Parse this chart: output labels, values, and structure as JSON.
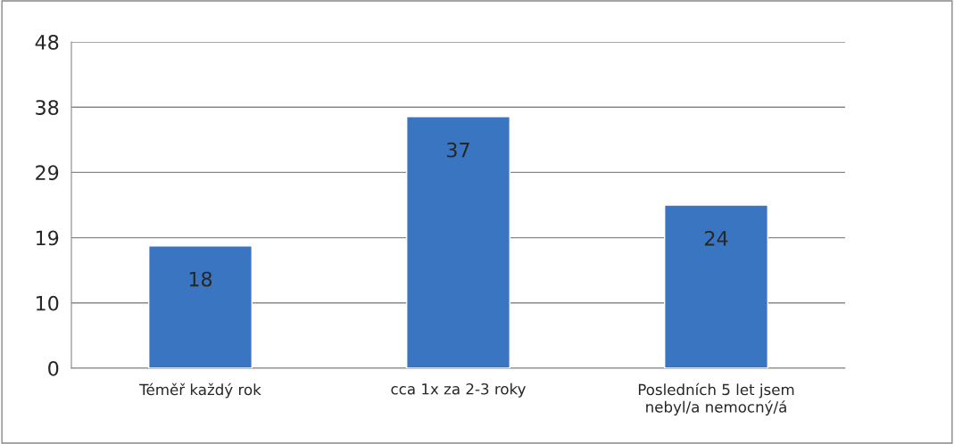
{
  "chart_data": {
    "type": "bar",
    "categories": [
      "Téměř každý rok",
      "cca 1x za 2-3 roky",
      "Posledních 5 let jsem\nnebyl/a nemocný/á"
    ],
    "values": [
      18,
      37,
      24
    ],
    "color": "#3a75c2",
    "ylim": [
      0,
      48
    ],
    "yticks": [
      0,
      {
        "value": 9.6,
        "label": "10"
      },
      {
        "value": 19.2,
        "label": "19"
      },
      {
        "value": 28.8,
        "label": "29"
      },
      {
        "value": 38.4,
        "label": "38"
      },
      48
    ],
    "grid": "y",
    "data_labels": true
  }
}
